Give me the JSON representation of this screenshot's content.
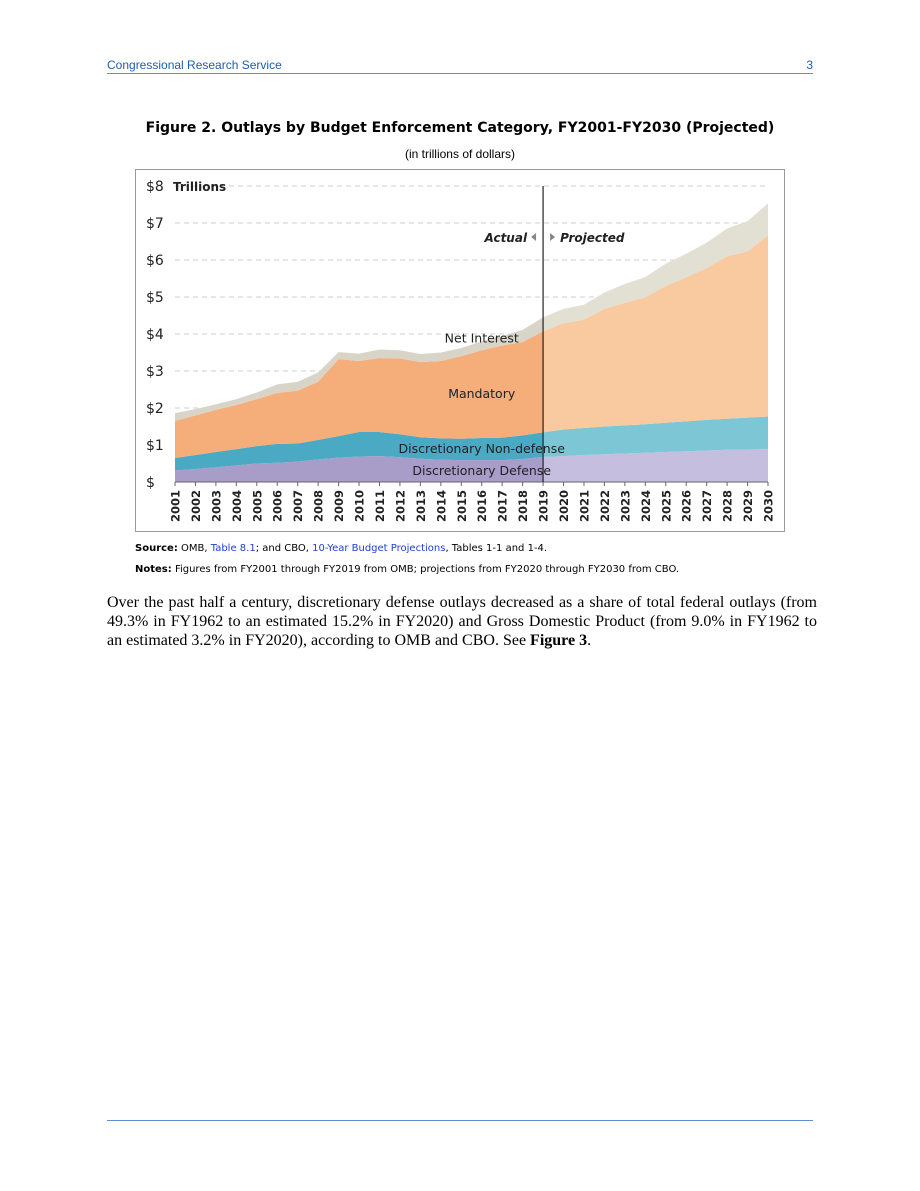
{
  "header": {
    "org": "Congressional Research Service",
    "page": "3"
  },
  "figure": {
    "title": "Figure 2. Outlays by Budget Enforcement Category, FY2001-FY2030 (Projected)",
    "subtitle": "(in trillions of dollars)"
  },
  "chart_data": {
    "type": "area",
    "stacked": true,
    "y_unit_label": "Trillions",
    "ylim": [
      0,
      8
    ],
    "y_ticks": [
      {
        "value": 0,
        "label": "$"
      },
      {
        "value": 1,
        "label": "$1"
      },
      {
        "value": 2,
        "label": "$2"
      },
      {
        "value": 3,
        "label": "$3"
      },
      {
        "value": 4,
        "label": "$4"
      },
      {
        "value": 5,
        "label": "$5"
      },
      {
        "value": 6,
        "label": "$6"
      },
      {
        "value": 7,
        "label": "$7"
      },
      {
        "value": 8,
        "label": "$8"
      }
    ],
    "grid": "horizontal dashed",
    "categories": [
      "2001",
      "2002",
      "2003",
      "2004",
      "2005",
      "2006",
      "2007",
      "2008",
      "2009",
      "2010",
      "2011",
      "2012",
      "2013",
      "2014",
      "2015",
      "2016",
      "2017",
      "2018",
      "2019",
      "2020",
      "2021",
      "2022",
      "2023",
      "2024",
      "2025",
      "2026",
      "2027",
      "2028",
      "2029",
      "2030"
    ],
    "divider_after": "2019",
    "actual_label": "Actual",
    "projected_label": "Projected",
    "series": [
      {
        "name": "Discretionary Defense",
        "color_actual": "#a89cc8",
        "color_projected": "#c5bedf",
        "values": [
          0.31,
          0.35,
          0.4,
          0.45,
          0.5,
          0.52,
          0.55,
          0.61,
          0.66,
          0.69,
          0.7,
          0.67,
          0.63,
          0.6,
          0.59,
          0.59,
          0.59,
          0.62,
          0.68,
          0.7,
          0.73,
          0.75,
          0.77,
          0.79,
          0.81,
          0.83,
          0.85,
          0.87,
          0.88,
          0.89
        ]
      },
      {
        "name": "Discretionary Non-defense",
        "color_actual": "#4aaac4",
        "color_projected": "#7cc6d6",
        "values": [
          0.34,
          0.38,
          0.41,
          0.44,
          0.47,
          0.51,
          0.49,
          0.53,
          0.58,
          0.66,
          0.65,
          0.62,
          0.58,
          0.58,
          0.58,
          0.6,
          0.61,
          0.64,
          0.66,
          0.72,
          0.73,
          0.75,
          0.76,
          0.77,
          0.79,
          0.81,
          0.83,
          0.84,
          0.86,
          0.88
        ]
      },
      {
        "name": "Mandatory",
        "color_actual": "#f5ad7a",
        "color_projected": "#f9c9a0",
        "values": [
          1.0,
          1.07,
          1.14,
          1.19,
          1.27,
          1.38,
          1.43,
          1.57,
          2.08,
          1.92,
          2.0,
          2.05,
          2.03,
          2.09,
          2.23,
          2.37,
          2.49,
          2.52,
          2.73,
          2.87,
          2.93,
          3.18,
          3.31,
          3.43,
          3.7,
          3.89,
          4.1,
          4.39,
          4.49,
          4.9
        ]
      },
      {
        "name": "Net Interest",
        "color_actual": "#d8d5c8",
        "color_projected": "#e2dfd3",
        "values": [
          0.21,
          0.17,
          0.15,
          0.16,
          0.18,
          0.23,
          0.24,
          0.25,
          0.19,
          0.2,
          0.23,
          0.22,
          0.22,
          0.23,
          0.22,
          0.24,
          0.26,
          0.33,
          0.38,
          0.39,
          0.4,
          0.44,
          0.51,
          0.55,
          0.6,
          0.64,
          0.69,
          0.75,
          0.82,
          0.86
        ]
      }
    ]
  },
  "source": {
    "label": "Source:",
    "t1": " OMB, ",
    "link1": "Table 8.1",
    "t2": "; and CBO, ",
    "link2": "10-Year Budget Projections",
    "t3": ", Tables 1-1 and 1-4."
  },
  "notes": {
    "label": "Notes:",
    "text": " Figures from FY2001 through FY2019 from OMB; projections from FY2020 through FY2030 from CBO."
  },
  "body": {
    "p1": "Over the past half a century, discretionary defense outlays decreased as a share of total federal outlays (from 49.3% in FY1962 to an estimated 15.2% in FY2020) and Gross Domestic Product (from 9.0% in FY1962 to an estimated 3.2% in FY2020), according to OMB and CBO. See ",
    "fig_ref": "Figure 3",
    "p1_end": "."
  }
}
